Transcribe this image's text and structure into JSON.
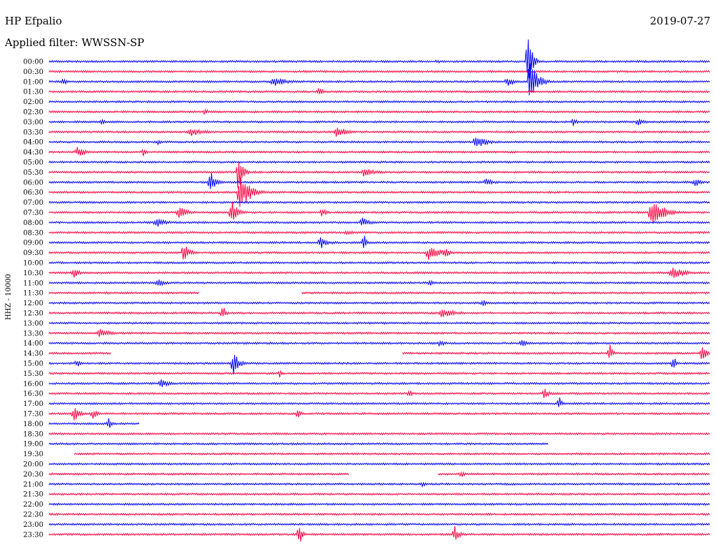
{
  "header": {
    "station": "HP Efpalio",
    "date": "2019-07-27",
    "filter": "Applied filter: WWSSN-SP"
  },
  "chart_data": {
    "type": "line",
    "title": "HP Efpalio",
    "subtitle": "Applied filter: WWSSN-SP",
    "ylabel": "HHZ - 10000",
    "grid": false,
    "colors": [
      "#0000ff",
      "#ff0040"
    ],
    "rows": [
      "00:00",
      "00:30",
      "01:00",
      "01:30",
      "02:00",
      "02:30",
      "03:00",
      "03:30",
      "04:00",
      "04:30",
      "05:00",
      "05:30",
      "06:00",
      "06:30",
      "07:00",
      "07:30",
      "08:00",
      "08:30",
      "09:00",
      "09:30",
      "10:00",
      "10:30",
      "11:00",
      "11:30",
      "12:00",
      "12:30",
      "13:00",
      "13:30",
      "14:00",
      "14:30",
      "15:00",
      "15:30",
      "16:00",
      "16:30",
      "17:00",
      "17:30",
      "18:00",
      "18:30",
      "19:00",
      "19:30",
      "20:00",
      "20:30",
      "21:00",
      "21:30",
      "22:00",
      "22:30",
      "23:00",
      "23:30"
    ]
  }
}
